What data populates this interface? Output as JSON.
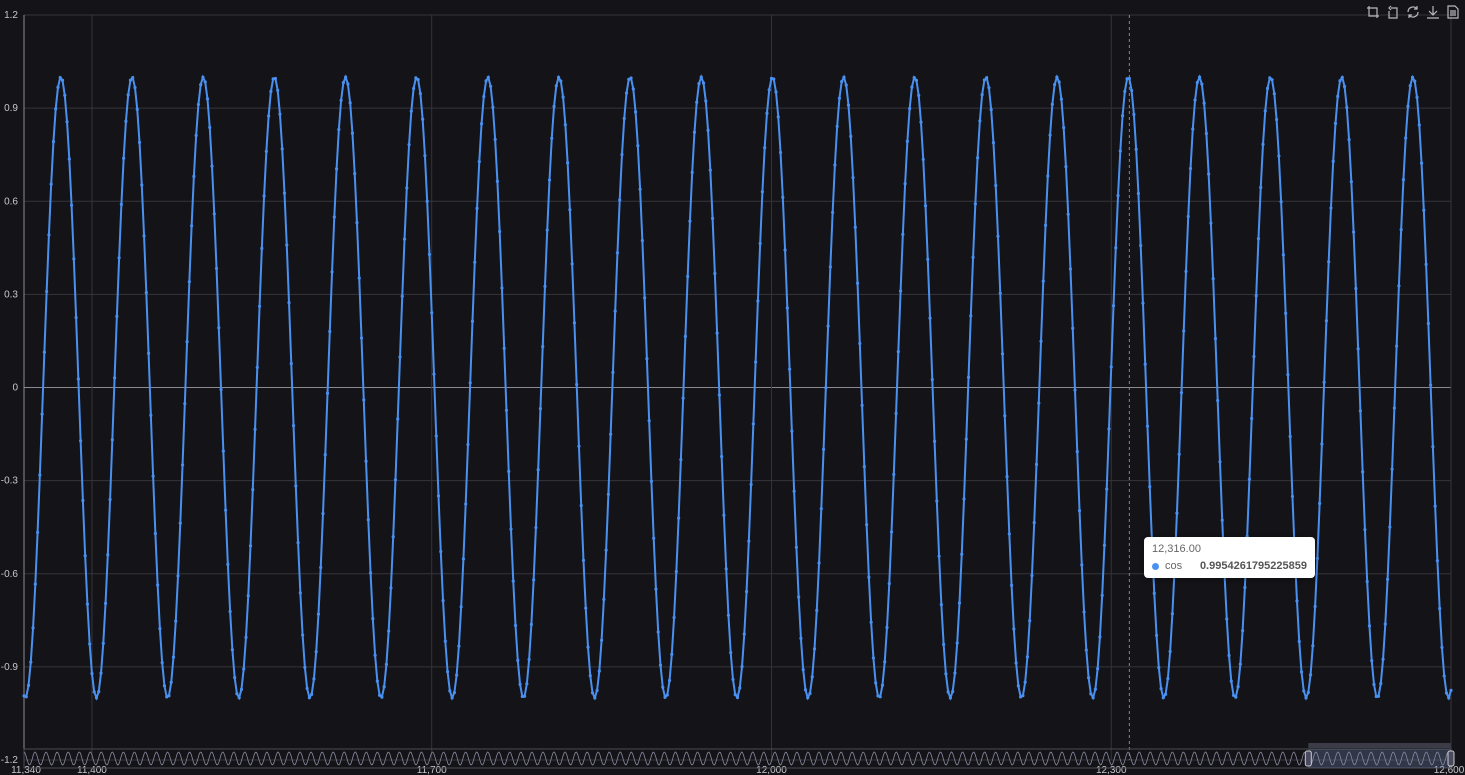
{
  "chart_data": {
    "type": "line",
    "series": [
      {
        "name": "cos",
        "function": "cos(x/10)",
        "x_min": 11340,
        "x_max": 12600,
        "x_step": 2,
        "color": "#4a90f0",
        "show_symbols": true
      }
    ],
    "xlim": [
      11340,
      12600
    ],
    "ylim": [
      -1.2,
      1.2
    ],
    "x_ticks": [
      11400,
      11700,
      12000,
      12300
    ],
    "x_tick_labels": [
      "11,400",
      "11,700",
      "12,000",
      "12,300"
    ],
    "x_edge_labels": [
      "11,340",
      "12,600"
    ],
    "y_ticks": [
      -1.2,
      -0.9,
      -0.6,
      -0.3,
      0,
      0.3,
      0.6,
      0.9,
      1.2
    ],
    "y_tick_labels": [
      "-1.2",
      "-0.9",
      "-0.6",
      "-0.3",
      "0",
      "0.3",
      "0.6",
      "0.9",
      "1.2"
    ],
    "grid": true,
    "data_zoom": {
      "start_percent": 90,
      "end_percent": 100
    },
    "cursor_x": 12316
  },
  "tooltip": {
    "x_label": "12,316.00",
    "series_name": "cos",
    "value": "0.9954261795225859"
  },
  "toolbox": [
    "zoom-icon",
    "zoom-reset-icon",
    "restore-icon",
    "save-image-icon",
    "data-view-icon"
  ],
  "colors": {
    "background": "#141418",
    "series": "#4a90f0",
    "grid": "#3a3a40"
  }
}
